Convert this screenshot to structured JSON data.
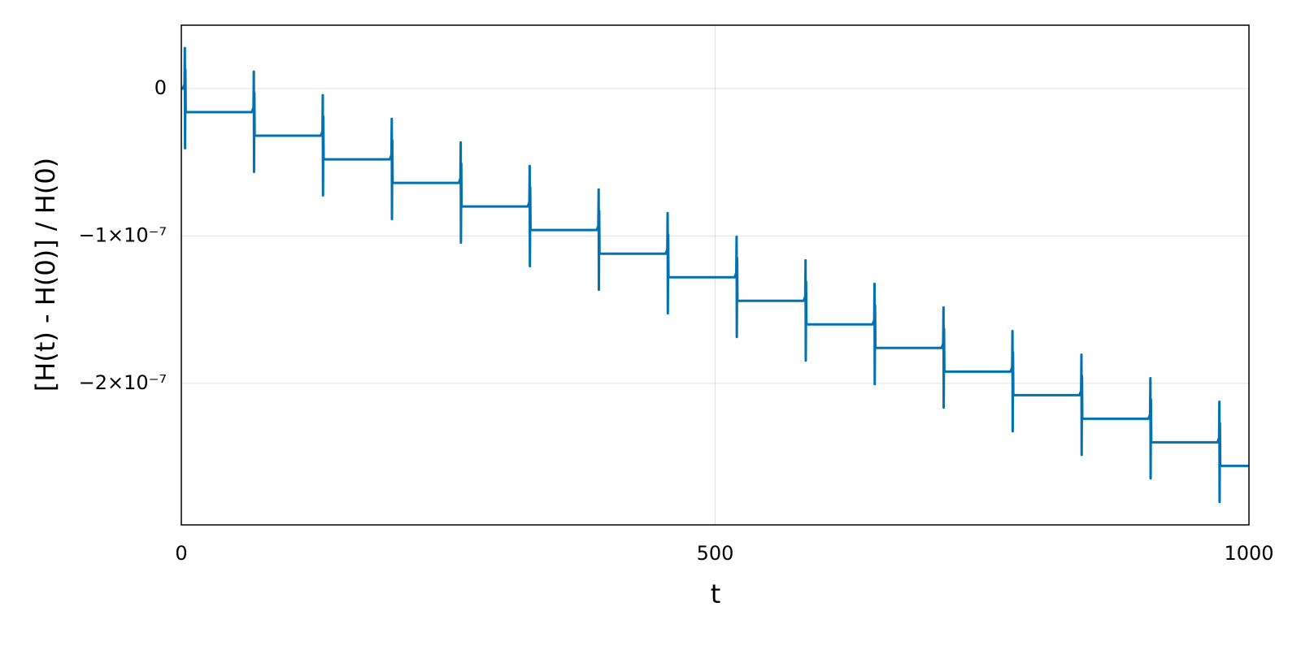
{
  "chart_data": {
    "type": "line",
    "x_label": "t",
    "y_label": "[H(t) - H(0)] / H(0)",
    "color": "#0072b2",
    "grid": true,
    "xlim": [
      0,
      1000
    ],
    "ylim": [
      -2.96e-07,
      4.3e-08
    ],
    "xticks": [
      0,
      500,
      1000
    ],
    "yticks": [
      0,
      {
        "value": -1e-07,
        "label": "−1×10⁻⁷"
      },
      {
        "value": -2e-07,
        "label": "−2×10⁻⁷"
      }
    ],
    "x": [
      0,
      1.5,
      3.0,
      3.3,
      3.5,
      3.8,
      4.1,
      66.1,
      67.6,
      67.9,
      68.1,
      68.4,
      68.7,
      130.7,
      132.2,
      132.5,
      132.7,
      133.0,
      133.3,
      195.3,
      196.8,
      197.1,
      197.3,
      197.6,
      197.9,
      259.9,
      261.4,
      261.7,
      261.9,
      262.2,
      262.5,
      324.5,
      326.0,
      326.3,
      326.5,
      326.8,
      327.1,
      389.1,
      390.6,
      390.9,
      391.1,
      391.4,
      391.7,
      453.7,
      455.2,
      455.5,
      455.7,
      456.0,
      456.3,
      518.3,
      519.8,
      520.1,
      520.3,
      520.6,
      520.9,
      582.9,
      584.4,
      584.7,
      584.9,
      585.2,
      585.5,
      647.5,
      649.0,
      649.3,
      649.5,
      649.8,
      650.1,
      712.1,
      713.6,
      713.9,
      714.1,
      714.4,
      714.7,
      776.7,
      778.2,
      778.5,
      778.7,
      779.0,
      779.3,
      841.3,
      842.8,
      843.1,
      843.3,
      843.6,
      843.9,
      905.9,
      907.4,
      907.7,
      907.9,
      908.2,
      908.5,
      970.5,
      972.0,
      972.3,
      972.5,
      972.8,
      973.1,
      1000
    ],
    "values": [
      0,
      0,
      3e-09,
      2.75e-08,
      -4.05e-08,
      1.3e-08,
      -1.6e-08,
      -1.6e-08,
      -1.3e-08,
      1.15e-08,
      -5.65e-08,
      -3e-09,
      -3.2e-08,
      -3.2e-08,
      -2.9e-08,
      -4.5e-09,
      -7.25e-08,
      -1.9e-08,
      -4.8e-08,
      -4.8e-08,
      -4.5e-08,
      -2.05e-08,
      -8.85e-08,
      -3.5e-08,
      -6.4e-08,
      -6.4e-08,
      -6.1e-08,
      -3.65e-08,
      -1.045e-07,
      -5.1e-08,
      -8e-08,
      -8e-08,
      -7.7e-08,
      -5.25e-08,
      -1.205e-07,
      -6.7e-08,
      -9.6e-08,
      -9.6e-08,
      -9.3e-08,
      -6.85e-08,
      -1.365e-07,
      -8.3e-08,
      -1.12e-07,
      -1.12e-07,
      -1.09e-07,
      -8.45e-08,
      -1.525e-07,
      -9.9e-08,
      -1.28e-07,
      -1.28e-07,
      -1.25e-07,
      -1.005e-07,
      -1.685e-07,
      -1.15e-07,
      -1.44e-07,
      -1.44e-07,
      -1.41e-07,
      -1.165e-07,
      -1.845e-07,
      -1.31e-07,
      -1.6e-07,
      -1.6e-07,
      -1.57e-07,
      -1.325e-07,
      -2.005e-07,
      -1.47e-07,
      -1.76e-07,
      -1.76e-07,
      -1.73e-07,
      -1.485e-07,
      -2.165e-07,
      -1.63e-07,
      -1.92e-07,
      -1.92e-07,
      -1.89e-07,
      -1.645e-07,
      -2.325e-07,
      -1.79e-07,
      -2.08e-07,
      -2.08e-07,
      -2.05e-07,
      -1.805e-07,
      -2.485e-07,
      -1.95e-07,
      -2.24e-07,
      -2.24e-07,
      -2.21e-07,
      -1.965e-07,
      -2.645e-07,
      -2.11e-07,
      -2.4e-07,
      -2.4e-07,
      -2.37e-07,
      -2.125e-07,
      -2.805e-07,
      -2.27e-07,
      -2.56e-07,
      -2.56e-07
    ]
  }
}
